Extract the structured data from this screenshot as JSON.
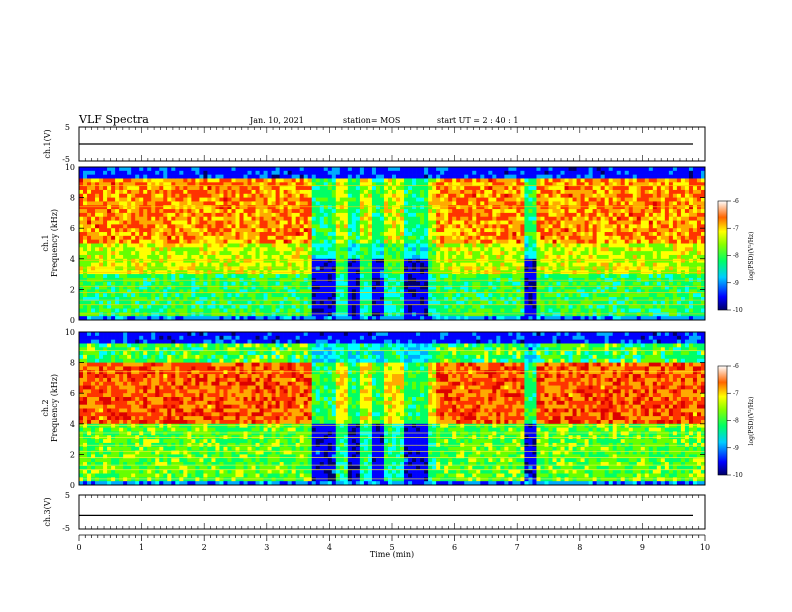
{
  "header": {
    "title": "VLF Spectra",
    "date": "Jan. 10, 2021",
    "station": "station= MOS",
    "start": "start UT =  2 : 40 : 1"
  },
  "colors": {
    "spectrum": [
      "#000066",
      "#0000ff",
      "#00aaff",
      "#00ffff",
      "#00ff66",
      "#66ff00",
      "#ffff00",
      "#ffaa00",
      "#ff3300",
      "#dd0000"
    ]
  },
  "chart_data": [
    {
      "type": "line",
      "panel": "ch1-voltage",
      "ylabel": "ch.1(V)",
      "ylim": [
        -5,
        5
      ],
      "yticks": [
        5,
        -5
      ],
      "x": [
        0,
        10
      ],
      "values": [
        0,
        0
      ]
    },
    {
      "type": "heatmap",
      "panel": "ch1-spectrum",
      "ylabel": "ch.1\nFrequency (kHz)",
      "ylim": [
        0,
        10
      ],
      "yticks": [
        0,
        2,
        4,
        6,
        8,
        10
      ],
      "xlim": [
        0,
        10
      ],
      "colorbar": {
        "label": "log(PSD)(V²/Hz)",
        "range": [
          -10,
          -6
        ],
        "ticks": [
          -6,
          -7,
          -8,
          -9,
          -10
        ]
      },
      "quiet_intervals_min": [
        [
          3.7,
          4.1
        ],
        [
          4.3,
          4.5
        ],
        [
          4.7,
          4.9
        ],
        [
          5.2,
          5.6
        ],
        [
          7.1,
          7.3
        ]
      ]
    },
    {
      "type": "heatmap",
      "panel": "ch2-spectrum",
      "ylabel": "ch.2\nFrequency (kHz)",
      "ylim": [
        0,
        10
      ],
      "yticks": [
        0,
        2,
        4,
        6,
        8,
        10
      ],
      "xlim": [
        0,
        10
      ],
      "colorbar": {
        "label": "log(PSD)(V²/Hz)",
        "range": [
          -10,
          -6
        ],
        "ticks": [
          -6,
          -7,
          -8,
          -9,
          -10
        ]
      },
      "quiet_intervals_min": [
        [
          3.7,
          4.1
        ],
        [
          4.3,
          4.5
        ],
        [
          4.7,
          4.9
        ],
        [
          5.2,
          5.6
        ],
        [
          7.1,
          7.3
        ]
      ]
    },
    {
      "type": "line",
      "panel": "ch3-voltage",
      "ylabel": "ch.3(V)",
      "ylim": [
        -5,
        5
      ],
      "yticks": [
        5,
        -5
      ],
      "x": [
        0,
        10
      ],
      "values": [
        -1,
        -1
      ]
    }
  ],
  "xaxis": {
    "label": "Time  (min)",
    "ticks": [
      "0",
      "1",
      "2",
      "3",
      "4",
      "5",
      "6",
      "7",
      "8",
      "9",
      "10"
    ]
  }
}
